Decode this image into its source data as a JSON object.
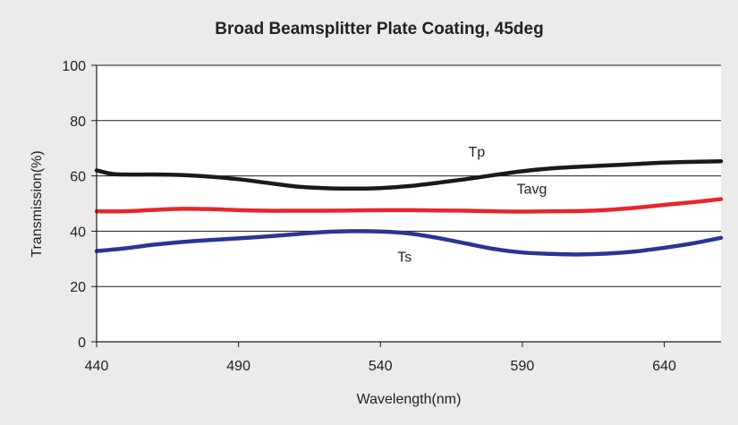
{
  "chart_data": {
    "type": "line",
    "title": "Broad Beamsplitter Plate Coating, 45deg",
    "xlabel": "Wavelength(nm)",
    "ylabel": "Transmission(%)",
    "xlim": [
      440,
      660
    ],
    "ylim": [
      0,
      100
    ],
    "xticks": [
      440,
      490,
      540,
      590,
      640
    ],
    "yticks": [
      0,
      20,
      40,
      60,
      80,
      100
    ],
    "grid": "horizontal",
    "legend": "none",
    "series": [
      {
        "name": "Tp",
        "color": "#1a1a1a",
        "x": [
          440,
          445,
          450,
          460,
          470,
          480,
          490,
          500,
          510,
          520,
          530,
          540,
          550,
          560,
          570,
          580,
          590,
          600,
          610,
          620,
          630,
          640,
          650,
          660
        ],
        "y": [
          62,
          60.8,
          60.5,
          60.5,
          60.3,
          59.7,
          58.8,
          57.5,
          56.2,
          55.6,
          55.4,
          55.6,
          56.3,
          57.5,
          58.8,
          60.3,
          61.7,
          62.7,
          63.3,
          63.8,
          64.3,
          64.8,
          65.1,
          65.3
        ]
      },
      {
        "name": "Tavg",
        "color": "#e8262b",
        "x": [
          440,
          450,
          460,
          470,
          480,
          490,
          500,
          510,
          520,
          530,
          540,
          550,
          560,
          570,
          580,
          590,
          600,
          610,
          620,
          630,
          640,
          650,
          660
        ],
        "y": [
          47.2,
          47.2,
          47.7,
          48.1,
          48.0,
          47.6,
          47.4,
          47.4,
          47.4,
          47.5,
          47.6,
          47.6,
          47.5,
          47.4,
          47.2,
          47.1,
          47.2,
          47.3,
          47.7,
          48.5,
          49.5,
          50.5,
          51.6
        ]
      },
      {
        "name": "Ts",
        "color": "#2c3494",
        "x": [
          440,
          450,
          460,
          470,
          480,
          490,
          500,
          510,
          520,
          530,
          540,
          550,
          560,
          570,
          580,
          590,
          600,
          610,
          620,
          630,
          640,
          650,
          660
        ],
        "y": [
          32.8,
          33.8,
          35.1,
          36.1,
          36.8,
          37.4,
          38.1,
          38.9,
          39.7,
          40.0,
          39.9,
          39.2,
          37.6,
          35.6,
          33.6,
          32.3,
          31.8,
          31.6,
          31.9,
          32.7,
          34.0,
          35.6,
          37.6
        ]
      }
    ],
    "annotations": [
      {
        "text": "Tp",
        "x": 571,
        "y": 67
      },
      {
        "text": "Tavg",
        "x": 588,
        "y": 53.5
      },
      {
        "text": "Ts",
        "x": 546,
        "y": 29
      }
    ]
  }
}
